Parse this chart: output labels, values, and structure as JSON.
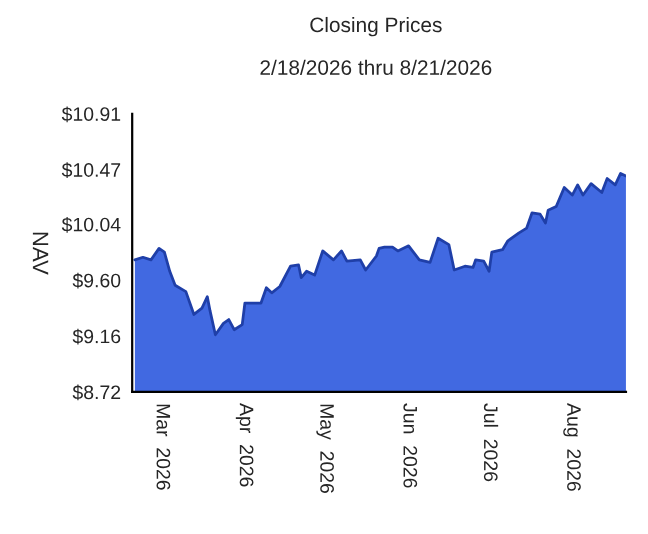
{
  "chart_data": {
    "type": "area",
    "title": "Closing Prices",
    "subtitle": "2/18/2026 thru 8/21/2026",
    "ylabel": "NAV",
    "x": [
      "2026-02-19",
      "2026-02-22",
      "2026-02-25",
      "2026-02-28",
      "2026-03-02",
      "2026-03-04",
      "2026-03-06",
      "2026-03-10",
      "2026-03-13",
      "2026-03-16",
      "2026-03-18",
      "2026-03-19",
      "2026-03-21",
      "2026-03-24",
      "2026-03-26",
      "2026-03-28",
      "2026-03-31",
      "2026-04-01",
      "2026-04-07",
      "2026-04-09",
      "2026-04-11",
      "2026-04-14",
      "2026-04-18",
      "2026-04-21",
      "2026-04-22",
      "2026-04-24",
      "2026-04-27",
      "2026-04-30",
      "2026-05-04",
      "2026-05-07",
      "2026-05-09",
      "2026-05-14",
      "2026-05-16",
      "2026-05-20",
      "2026-05-21",
      "2026-05-23",
      "2026-05-26",
      "2026-05-28",
      "2026-06-01",
      "2026-06-05",
      "2026-06-09",
      "2026-06-12",
      "2026-06-16",
      "2026-06-18",
      "2026-06-22",
      "2026-06-25",
      "2026-06-26",
      "2026-06-29",
      "2026-07-01",
      "2026-07-02",
      "2026-07-06",
      "2026-07-08",
      "2026-07-12",
      "2026-07-15",
      "2026-07-17",
      "2026-07-20",
      "2026-07-22",
      "2026-07-23",
      "2026-07-26",
      "2026-07-29",
      "2026-08-01",
      "2026-08-03",
      "2026-08-05",
      "2026-08-08",
      "2026-08-12",
      "2026-08-14",
      "2026-08-17",
      "2026-08-19",
      "2026-08-21"
    ],
    "series": [
      {
        "color": "#4169e1",
        "values": [
          9.76,
          9.78,
          9.76,
          9.85,
          9.82,
          9.67,
          9.56,
          9.51,
          9.33,
          9.38,
          9.47,
          9.36,
          9.17,
          9.26,
          9.29,
          9.21,
          9.25,
          9.42,
          9.42,
          9.54,
          9.5,
          9.55,
          9.71,
          9.72,
          9.62,
          9.67,
          9.64,
          9.83,
          9.76,
          9.83,
          9.75,
          9.76,
          9.68,
          9.79,
          9.85,
          9.86,
          9.86,
          9.83,
          9.87,
          9.76,
          9.74,
          9.93,
          9.88,
          9.68,
          9.71,
          9.7,
          9.76,
          9.75,
          9.67,
          9.82,
          9.84,
          9.91,
          9.97,
          10.01,
          10.13,
          10.12,
          10.05,
          10.15,
          10.18,
          10.33,
          10.27,
          10.35,
          10.27,
          10.36,
          10.29,
          10.4,
          10.35,
          10.44,
          10.42
        ]
      }
    ],
    "xlim": [
      "2026-02-18",
      "2026-08-21"
    ],
    "xticks": [
      {
        "value": "2026-03-01",
        "label": "Mar  2026"
      },
      {
        "value": "2026-04-01",
        "label": "Apr  2026"
      },
      {
        "value": "2026-05-01",
        "label": "May  2026"
      },
      {
        "value": "2026-06-01",
        "label": "Jun  2026"
      },
      {
        "value": "2026-07-01",
        "label": "Jul  2026"
      },
      {
        "value": "2026-08-01",
        "label": "Aug  2026"
      }
    ],
    "ylim": [
      8.72,
      10.91
    ],
    "yticks": [
      {
        "value": 8.72,
        "label": "$8.72"
      },
      {
        "value": 9.16,
        "label": "$9.16"
      },
      {
        "value": 9.6,
        "label": "$9.60"
      },
      {
        "value": 10.04,
        "label": "$10.04"
      },
      {
        "value": 10.47,
        "label": "$10.47"
      },
      {
        "value": 10.91,
        "label": "$10.91"
      }
    ],
    "grid": false,
    "legend": false
  }
}
